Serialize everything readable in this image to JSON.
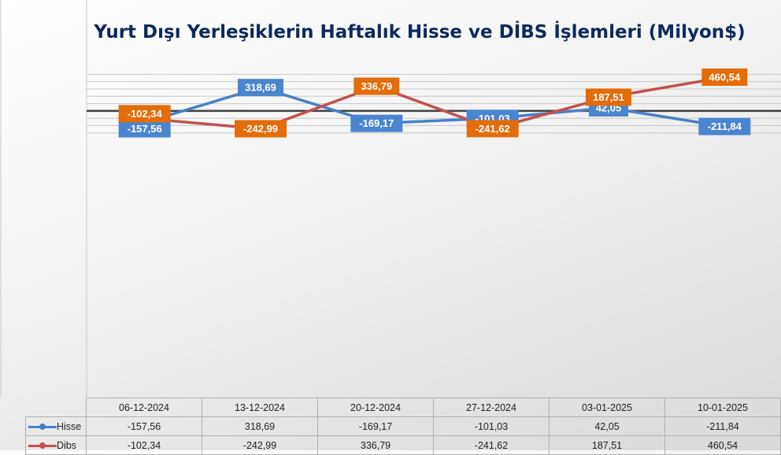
{
  "colors": {
    "hisse": "#4a7fc6",
    "dibs": "#c3504f",
    "hisse_label_bg": "#4a86cf",
    "dibs_label_bg": "#e46c0a",
    "title": "#0d2a5e"
  },
  "chart_data": {
    "type": "line",
    "title": "Yurt Dışı Yerleşiklerin Haftalık Hisse ve DİBS İşlemleri (Milyon$)",
    "xlabel": "",
    "ylabel": "",
    "ylim": [
      -400,
      600
    ],
    "grid": true,
    "legend": "data-table-left",
    "categories": [
      "06-12-2024",
      "13-12-2024",
      "20-12-2024",
      "27-12-2024",
      "03-01-2025",
      "10-01-2025"
    ],
    "series": [
      {
        "name": "Hisse",
        "values": [
          -157.56,
          318.69,
          -169.17,
          -101.03,
          42.05,
          -211.84
        ],
        "labels": [
          "-157,56",
          "318,69",
          "-169,17",
          "-101,03",
          "42,05",
          "-211,84"
        ]
      },
      {
        "name": "Dibs",
        "values": [
          -102.34,
          -242.99,
          336.79,
          -241.62,
          187.51,
          460.54
        ],
        "labels": [
          "-102,34",
          "-242,99",
          "336,79",
          "-241,62",
          "187,51",
          "460,54"
        ]
      }
    ]
  }
}
